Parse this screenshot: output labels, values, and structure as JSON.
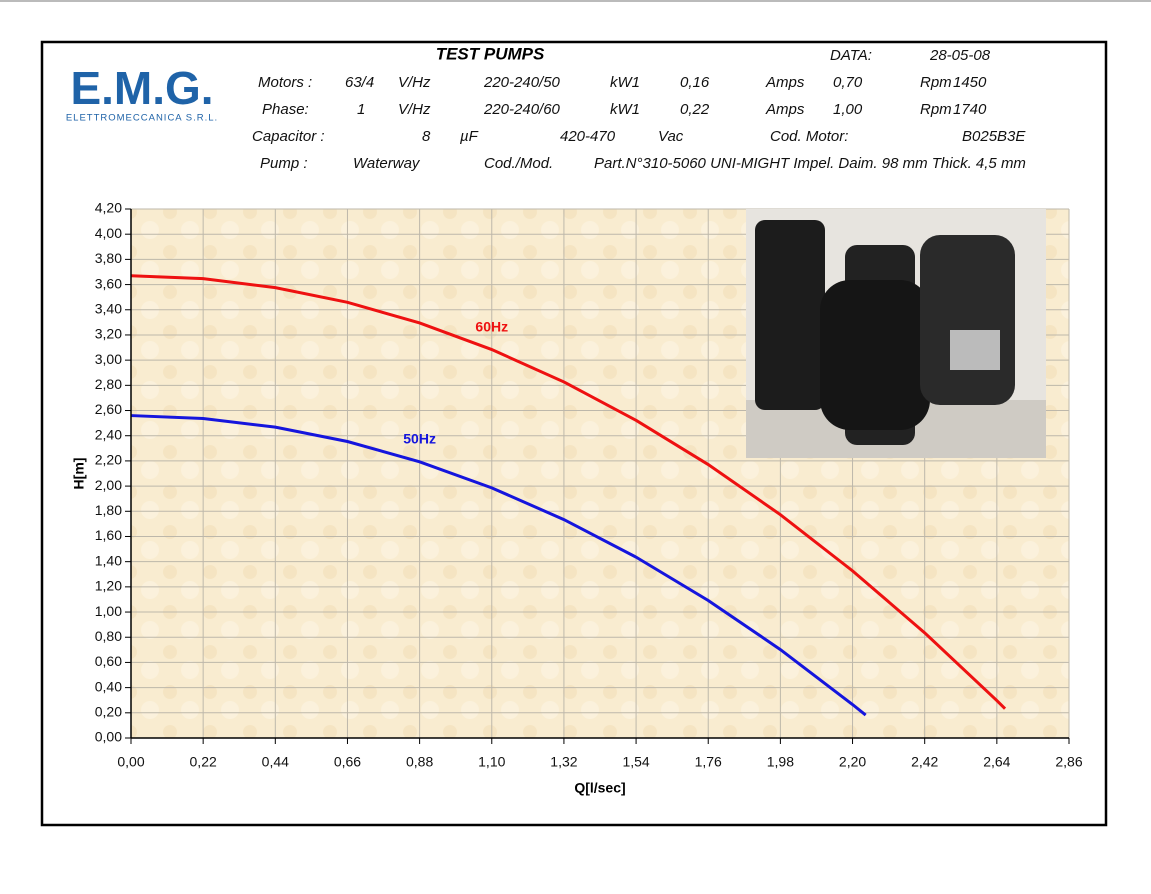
{
  "logo": {
    "name": "E.M.G.",
    "subtitle": "ELETTROMECCANICA S.R.L."
  },
  "header": {
    "title": "TEST PUMPS",
    "date_label": "DATA:",
    "date": "28-05-08",
    "rows": [
      [
        "Motors :",
        "63/4",
        "V/Hz",
        "220-240/50",
        "kW1",
        "0,16",
        "Amps",
        "0,70",
        "Rpm",
        "1450"
      ],
      [
        "Phase:",
        "1",
        "V/Hz",
        "220-240/60",
        "kW1",
        "0,22",
        "Amps",
        "1,00",
        "Rpm",
        "1740"
      ],
      [
        "Capacitor :",
        "8",
        "µF",
        "420-470",
        "Vac",
        "Cod. Motor:",
        "B025B3E"
      ],
      [
        "Pump :",
        "Waterway",
        "Cod./Mod.",
        "Part.N°310-5060 UNI-MIGHT Impel. Daim. 98 mm Thick. 4,5 mm"
      ]
    ]
  },
  "chart_data": {
    "type": "line",
    "x_label": "Q[l/sec]",
    "y_label": "H[m]",
    "grid": true,
    "xlim": [
      0,
      2.86
    ],
    "ylim": [
      0,
      4.2
    ],
    "xticks": [
      {
        "value": 0,
        "label": "0,00"
      },
      {
        "value": 0.22,
        "label": "0,22"
      },
      {
        "value": 0.44,
        "label": "0,44"
      },
      {
        "value": 0.66,
        "label": "0,66"
      },
      {
        "value": 0.88,
        "label": "0,88"
      },
      {
        "value": 1.1,
        "label": "1,10"
      },
      {
        "value": 1.32,
        "label": "1,32"
      },
      {
        "value": 1.54,
        "label": "1,54"
      },
      {
        "value": 1.76,
        "label": "1,76"
      },
      {
        "value": 1.98,
        "label": "1,98"
      },
      {
        "value": 2.2,
        "label": "2,20"
      },
      {
        "value": 2.42,
        "label": "2,42"
      },
      {
        "value": 2.64,
        "label": "2,64"
      },
      {
        "value": 2.86,
        "label": "2,86"
      }
    ],
    "yticks": [
      {
        "value": 0,
        "label": "0,00"
      },
      {
        "value": 0.2,
        "label": "0,20"
      },
      {
        "value": 0.4,
        "label": "0,40"
      },
      {
        "value": 0.6,
        "label": "0,60"
      },
      {
        "value": 0.8,
        "label": "0,80"
      },
      {
        "value": 1.0,
        "label": "1,00"
      },
      {
        "value": 1.2,
        "label": "1,20"
      },
      {
        "value": 1.4,
        "label": "1,40"
      },
      {
        "value": 1.6,
        "label": "1,60"
      },
      {
        "value": 1.8,
        "label": "1,80"
      },
      {
        "value": 2.0,
        "label": "2,00"
      },
      {
        "value": 2.2,
        "label": "2,20"
      },
      {
        "value": 2.4,
        "label": "2,40"
      },
      {
        "value": 2.6,
        "label": "2,60"
      },
      {
        "value": 2.8,
        "label": "2,80"
      },
      {
        "value": 3.0,
        "label": "3,00"
      },
      {
        "value": 3.2,
        "label": "3,20"
      },
      {
        "value": 3.4,
        "label": "3,40"
      },
      {
        "value": 3.6,
        "label": "3,60"
      },
      {
        "value": 3.8,
        "label": "3,80"
      },
      {
        "value": 4.0,
        "label": "4,00"
      },
      {
        "value": 4.2,
        "label": "4,20"
      }
    ],
    "series": [
      {
        "name": "60Hz",
        "color": "#ee1111",
        "x": [
          0,
          0.22,
          0.44,
          0.66,
          0.88,
          1.1,
          1.32,
          1.54,
          1.76,
          1.98,
          2.2,
          2.42,
          2.64,
          2.665
        ],
        "values": [
          3.67,
          3.647,
          3.576,
          3.459,
          3.295,
          3.084,
          2.827,
          2.522,
          2.171,
          1.773,
          1.327,
          0.835,
          0.297,
          0.233
        ]
      },
      {
        "name": "50Hz",
        "color": "#1515dd",
        "x": [
          0,
          0.22,
          0.44,
          0.66,
          0.88,
          1.1,
          1.32,
          1.54,
          1.76,
          1.98,
          2.2,
          2.24
        ],
        "values": [
          2.56,
          2.537,
          2.468,
          2.354,
          2.193,
          1.986,
          1.734,
          1.436,
          1.092,
          0.702,
          0.266,
          0.182
        ]
      }
    ]
  }
}
